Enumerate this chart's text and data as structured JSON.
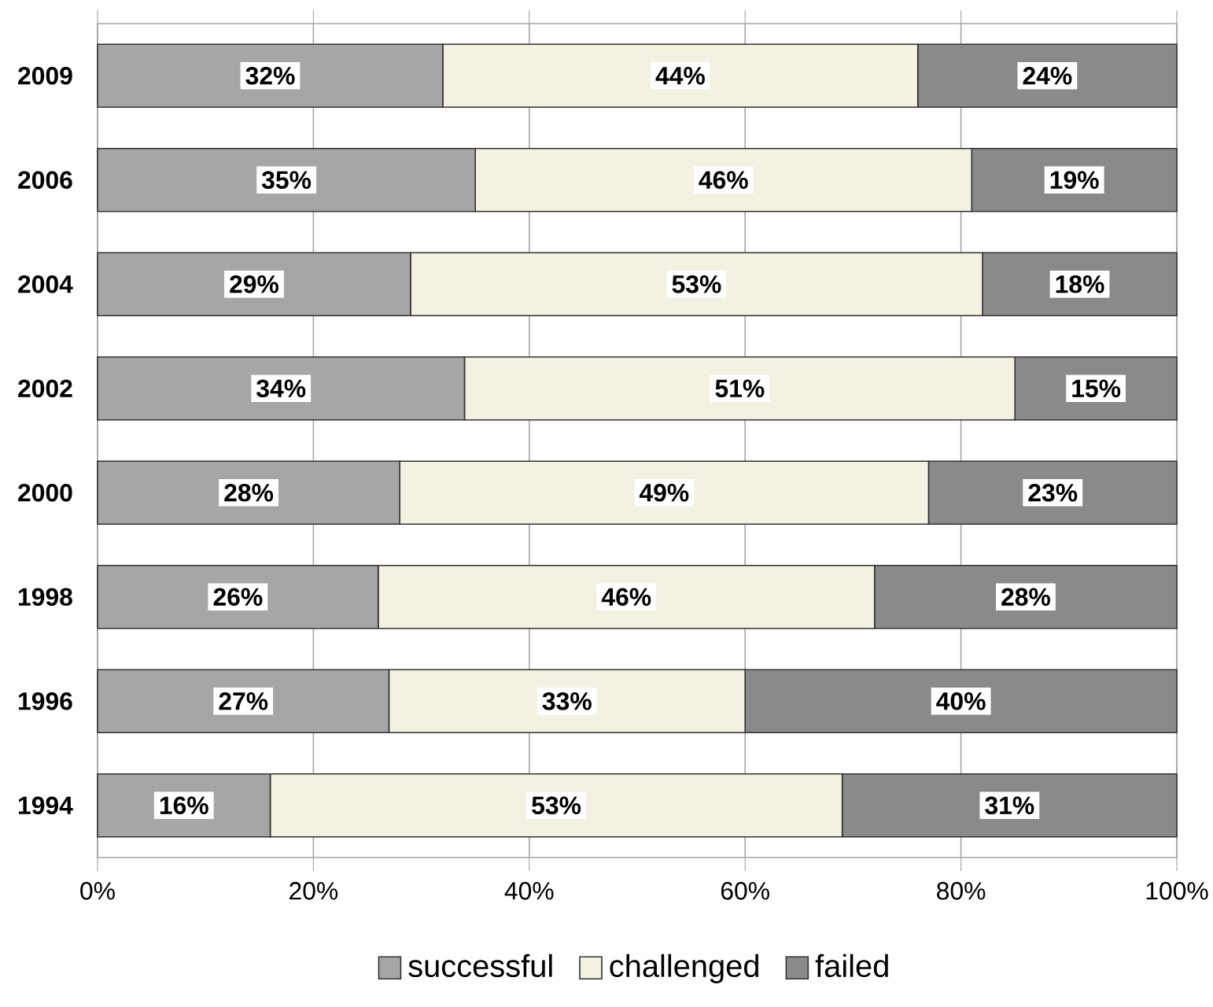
{
  "chart_data": {
    "type": "bar",
    "orientation": "horizontal",
    "stacked": true,
    "categories": [
      "2009",
      "2006",
      "2004",
      "2002",
      "2000",
      "1998",
      "1996",
      "1994"
    ],
    "series": [
      {
        "name": "successful",
        "color": "#a6a6a6",
        "values": [
          32,
          35,
          29,
          34,
          28,
          26,
          27,
          16
        ],
        "value_labels": [
          "32%",
          "35%",
          "29%",
          "34%",
          "28%",
          "26%",
          "27%",
          "16%"
        ]
      },
      {
        "name": "challenged",
        "color": "#f3f1e1",
        "values": [
          44,
          46,
          53,
          51,
          49,
          46,
          33,
          53
        ],
        "value_labels": [
          "44%",
          "46%",
          "53%",
          "51%",
          "49%",
          "46%",
          "33%",
          "53%"
        ]
      },
      {
        "name": "failed",
        "color": "#8a8a8a",
        "values": [
          24,
          19,
          18,
          15,
          23,
          28,
          40,
          31
        ],
        "value_labels": [
          "24%",
          "19%",
          "18%",
          "15%",
          "23%",
          "28%",
          "40%",
          "31%"
        ]
      }
    ],
    "xlim": [
      0,
      100
    ],
    "xticks": [
      {
        "value": 0,
        "label": "0%"
      },
      {
        "value": 20,
        "label": "20%"
      },
      {
        "value": 40,
        "label": "40%"
      },
      {
        "value": 60,
        "label": "60%"
      },
      {
        "value": 80,
        "label": "80%"
      },
      {
        "value": 100,
        "label": "100%"
      }
    ],
    "grid": "x",
    "legend": "bottom"
  }
}
